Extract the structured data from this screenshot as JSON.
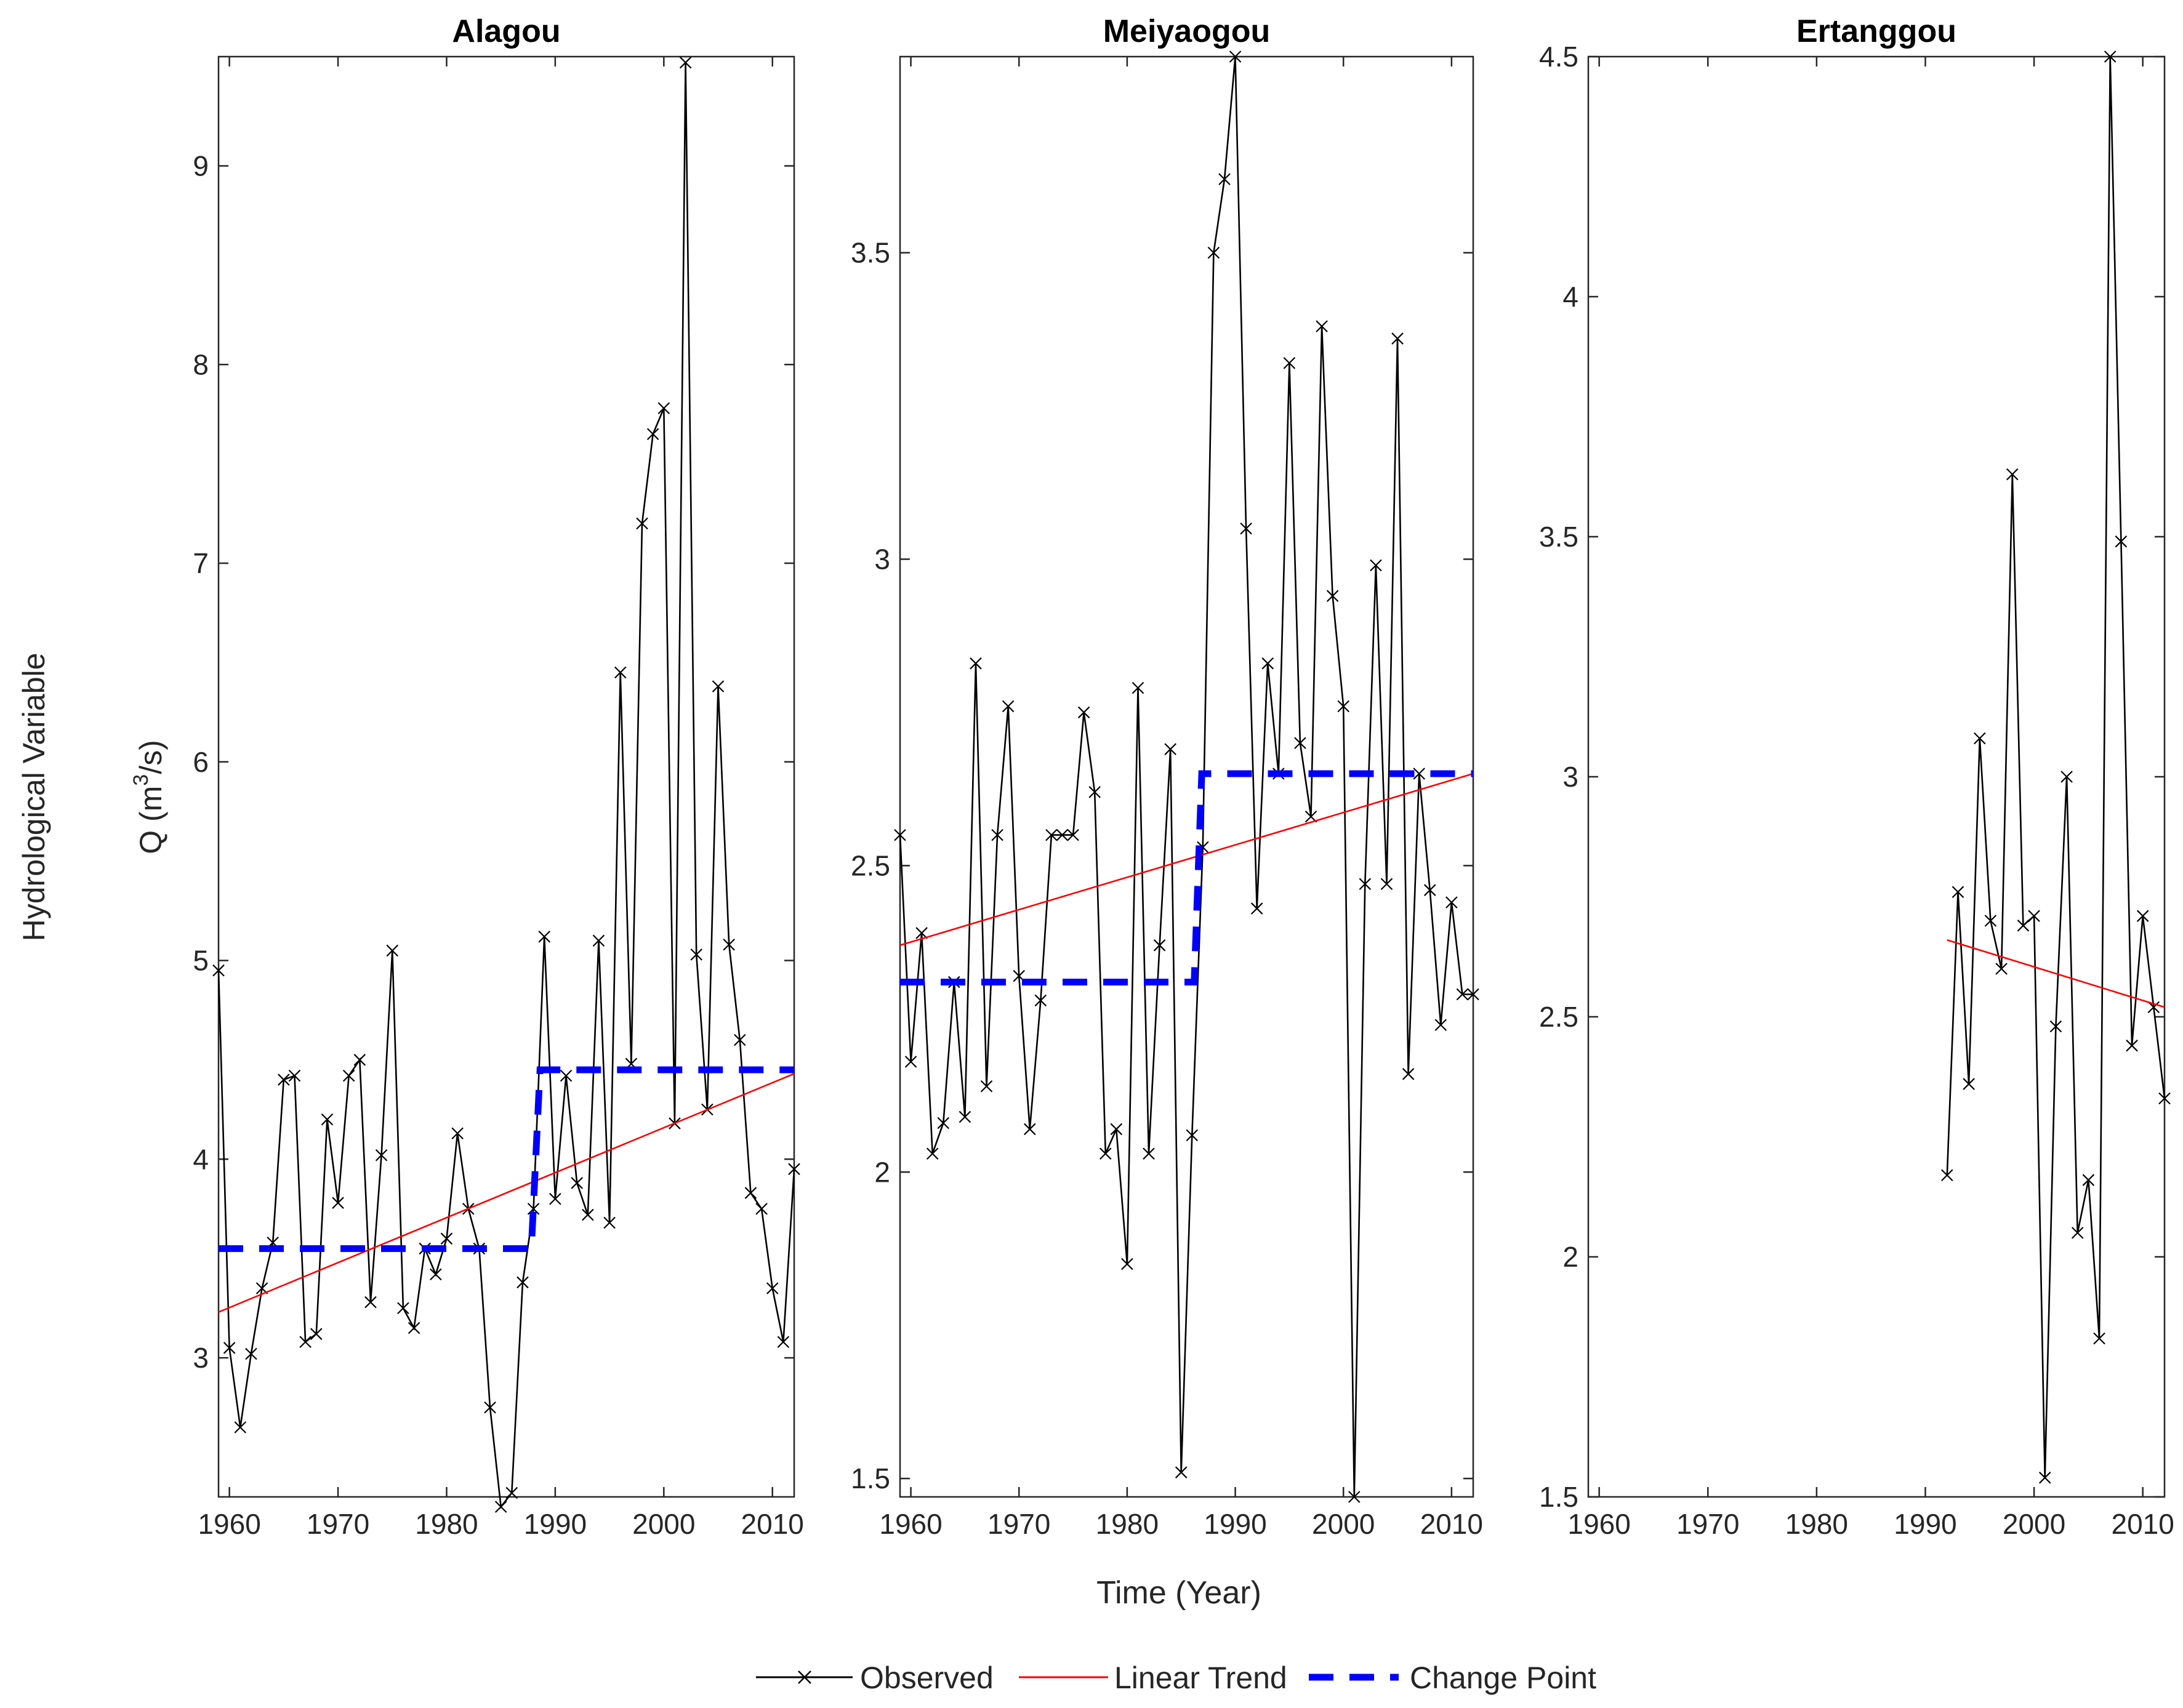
{
  "figure": {
    "ylabel_outer": "Hydrological Variable",
    "ylabel_q_prefix": "Q (m",
    "ylabel_q_sup": "3",
    "ylabel_q_suffix": "/s)",
    "xlabel": "Time (Year)",
    "legend": {
      "observed": "Observed",
      "trend": "Linear Trend",
      "change": "Change Point"
    },
    "colors": {
      "observed": "#000000",
      "trend": "#ff0000",
      "change": "#0000ff"
    }
  },
  "chart_data": [
    {
      "type": "line",
      "title": "Alagou",
      "xlim": [
        1959,
        2012
      ],
      "ylim": [
        2.3,
        9.55
      ],
      "xticks": [
        1960,
        1970,
        1980,
        1990,
        2000,
        2010
      ],
      "yticks": [
        3,
        4,
        5,
        6,
        7,
        8,
        9
      ],
      "ytick_labels": [
        "3",
        "4",
        "5",
        "6",
        "7",
        "8",
        "9"
      ],
      "series": [
        {
          "name": "Observed",
          "x": [
            1959,
            1960,
            1961,
            1962,
            1963,
            1964,
            1965,
            1966,
            1967,
            1968,
            1969,
            1970,
            1971,
            1972,
            1973,
            1974,
            1975,
            1976,
            1977,
            1978,
            1979,
            1980,
            1981,
            1982,
            1983,
            1984,
            1985,
            1986,
            1987,
            1988,
            1989,
            1990,
            1991,
            1992,
            1993,
            1994,
            1995,
            1996,
            1997,
            1998,
            1999,
            2000,
            2001,
            2002,
            2003,
            2004,
            2005,
            2006,
            2007,
            2008,
            2009,
            2010,
            2011,
            2012
          ],
          "y": [
            4.95,
            3.05,
            2.65,
            3.02,
            3.35,
            3.58,
            4.4,
            4.42,
            3.08,
            3.12,
            4.2,
            3.78,
            4.42,
            4.5,
            3.28,
            4.02,
            5.05,
            3.25,
            3.15,
            3.55,
            3.42,
            3.6,
            4.13,
            3.75,
            3.55,
            2.75,
            2.25,
            2.32,
            3.38,
            3.75,
            5.12,
            3.8,
            4.42,
            3.88,
            3.72,
            5.1,
            3.68,
            6.45,
            4.48,
            7.2,
            7.65,
            7.78,
            4.18,
            9.52,
            5.03,
            4.25,
            6.38,
            5.08,
            4.6,
            3.83,
            3.75,
            3.35,
            3.08,
            3.95
          ]
        },
        {
          "name": "Linear Trend",
          "x": [
            1959,
            2012
          ],
          "y": [
            3.23,
            4.43
          ]
        },
        {
          "name": "Change Point",
          "x": [
            1959,
            1987.8,
            1988.6,
            2012
          ],
          "y": [
            3.55,
            3.55,
            4.45,
            4.45
          ]
        }
      ]
    },
    {
      "type": "line",
      "title": "Meiyaogou",
      "xlim": [
        1959,
        2012
      ],
      "ylim": [
        1.47,
        3.82
      ],
      "xticks": [
        1960,
        1970,
        1980,
        1990,
        2000,
        2010
      ],
      "yticks": [
        1.5,
        2,
        2.5,
        3,
        3.5
      ],
      "ytick_labels": [
        "1.5",
        "2",
        "2.5",
        "3",
        "3.5"
      ],
      "series": [
        {
          "name": "Observed",
          "x": [
            1959,
            1960,
            1961,
            1962,
            1963,
            1964,
            1965,
            1966,
            1967,
            1968,
            1969,
            1970,
            1971,
            1972,
            1973,
            1974,
            1975,
            1976,
            1977,
            1978,
            1979,
            1980,
            1981,
            1982,
            1983,
            1984,
            1985,
            1986,
            1987,
            1988,
            1989,
            1990,
            1991,
            1992,
            1993,
            1994,
            1995,
            1996,
            1997,
            1998,
            1999,
            2000,
            2001,
            2002,
            2003,
            2004,
            2005,
            2006,
            2007,
            2008,
            2009,
            2010,
            2011,
            2012
          ],
          "y": [
            2.55,
            2.18,
            2.39,
            2.03,
            2.08,
            2.31,
            2.09,
            2.83,
            2.14,
            2.55,
            2.76,
            2.32,
            2.07,
            2.28,
            2.55,
            2.55,
            2.55,
            2.75,
            2.62,
            2.03,
            2.07,
            1.85,
            2.79,
            2.03,
            2.37,
            2.69,
            1.51,
            2.06,
            2.53,
            3.5,
            3.62,
            3.82,
            3.05,
            2.43,
            2.83,
            2.65,
            3.32,
            2.7,
            2.58,
            3.38,
            2.94,
            2.76,
            1.47,
            2.47,
            2.99,
            2.47,
            3.36,
            2.16,
            2.65,
            2.46,
            2.24,
            2.44,
            2.29,
            2.29
          ]
        },
        {
          "name": "Linear Trend",
          "x": [
            1959,
            2012
          ],
          "y": [
            2.37,
            2.65
          ]
        },
        {
          "name": "Change Point",
          "x": [
            1959,
            1986.2,
            1986.9,
            2012
          ],
          "y": [
            2.31,
            2.31,
            2.65,
            2.65
          ]
        }
      ]
    },
    {
      "type": "line",
      "title": "Ertanggou",
      "xlim": [
        1959,
        2012
      ],
      "ylim": [
        1.5,
        4.5
      ],
      "xticks": [
        1960,
        1970,
        1980,
        1990,
        2000,
        2010
      ],
      "yticks": [
        1.5,
        2,
        2.5,
        3,
        3.5,
        4,
        4.5
      ],
      "ytick_labels": [
        "1.5",
        "2",
        "2.5",
        "3",
        "3.5",
        "4",
        "4.5"
      ],
      "series": [
        {
          "name": "Observed",
          "x": [
            1992,
            1993,
            1994,
            1995,
            1996,
            1997,
            1998,
            1999,
            2000,
            2001,
            2002,
            2003,
            2004,
            2005,
            2006,
            2007,
            2008,
            2009,
            2010,
            2011,
            2012
          ],
          "y": [
            2.17,
            2.76,
            2.36,
            3.08,
            2.7,
            2.6,
            3.63,
            2.69,
            2.71,
            1.54,
            2.48,
            3.0,
            2.05,
            2.16,
            1.83,
            4.5,
            3.49,
            2.44,
            2.71,
            2.52,
            2.33
          ]
        },
        {
          "name": "Linear Trend",
          "x": [
            1992,
            2012
          ],
          "y": [
            2.66,
            2.52
          ]
        }
      ]
    }
  ]
}
